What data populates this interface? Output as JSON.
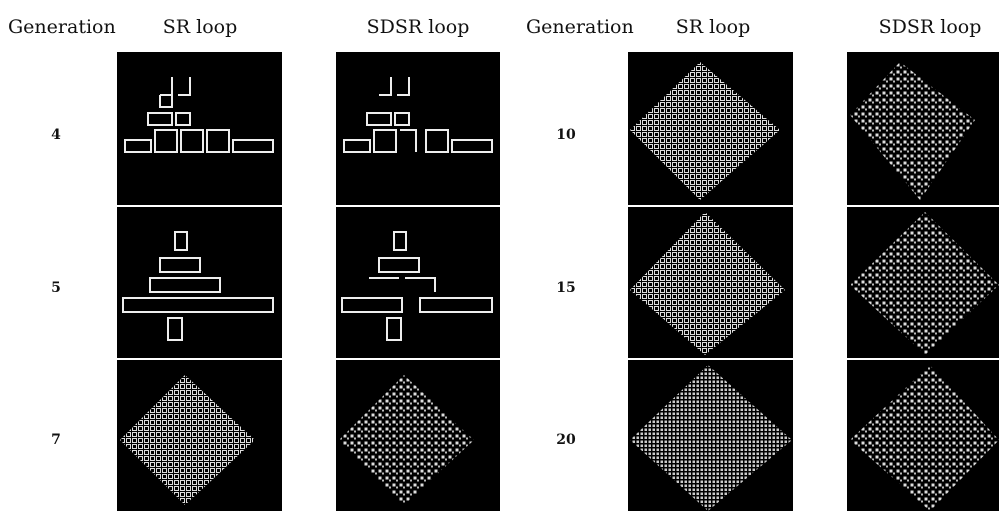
{
  "left": {
    "headers": [
      "Generation",
      "SR loop",
      "SDSR loop"
    ],
    "generations": [
      4,
      5,
      7
    ]
  },
  "right": {
    "headers": [
      "Generation",
      "SR loop",
      "SDSR loop"
    ],
    "generations": [
      10,
      15,
      20
    ]
  }
}
